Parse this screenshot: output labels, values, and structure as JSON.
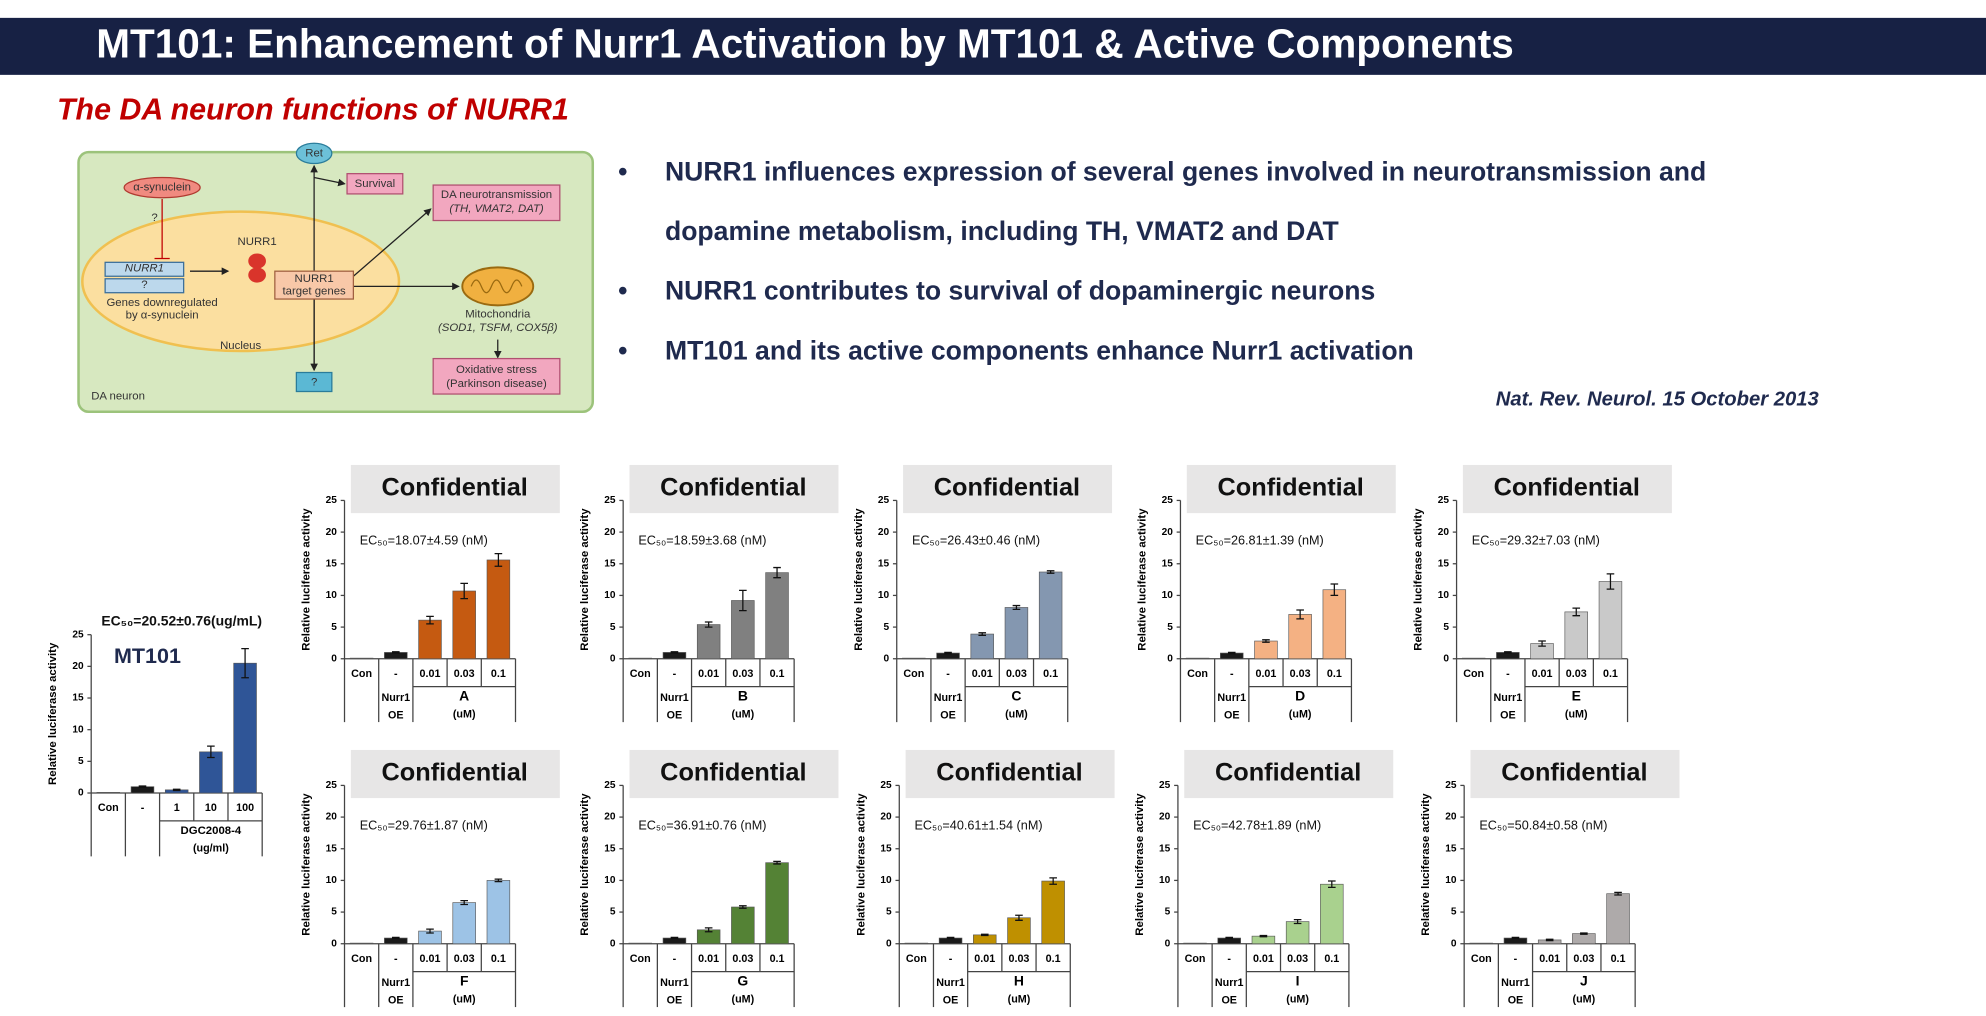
{
  "header": {
    "title": "MT101: Enhancement of Nurr1 Activation by MT101 & Active Components"
  },
  "subtitle": "The DA neuron functions of NURR1",
  "bullets": [
    "NURR1 influences expression of several genes involved in neurotransmission and",
    "dopamine metabolism, including TH, VMAT2 and DAT",
    "NURR1 contributes to survival of dopaminergic neurons",
    "MT101 and its active components enhance Nurr1 activation"
  ],
  "citation": "Nat. Rev. Neurol. 15 October 2013",
  "diagram": {
    "ret": "Ret",
    "survival": "Survival",
    "da_transmission": "DA neurotransmission",
    "da_genes": "(TH, VMAT2, DAT)",
    "synuclein": "α-synuclein",
    "q1": "?",
    "nurr1_gene": "NURR1",
    "q2": "?",
    "nurr1_protein": "NURR1",
    "target_1": "NURR1",
    "target_2": "target genes",
    "genes_1": "Genes downregulated",
    "genes_2": "by α-synuclein",
    "nucleus": "Nucleus",
    "mito": "Mitochondria",
    "mito_genes": "(SOD1, TSFM, COX5β)",
    "ox_1": "Oxidative stress",
    "ox_2": "(Parkinson disease)",
    "q3": "?",
    "neuron": "DA neuron"
  },
  "chart_data": [
    {
      "type": "bar",
      "label": "MT101",
      "annotation": "EC₅₀=20.52±0.76(ug/mL)",
      "y_label": "Relative luciferase activity",
      "categories": [
        "Con",
        "-",
        "1",
        "10",
        "100"
      ],
      "values": [
        0.1,
        1.0,
        0.5,
        6.5,
        20.5
      ],
      "errors": [
        null,
        0.1,
        0.1,
        0.9,
        2.3
      ],
      "color": "#2f5597",
      "control_color": "#1a1a1a",
      "ylim": [
        0,
        25
      ],
      "yticks": [
        0,
        5,
        10,
        15,
        20,
        25
      ],
      "group_label": "DGC2008-4",
      "unit_label": "(ug/ml)"
    },
    {
      "type": "bar",
      "overlay": "Confidential",
      "annotation": "EC₅₀=18.07±4.59 (nM)",
      "y_label": "Relative luciferase activity",
      "categories": [
        "Con",
        "-",
        "0.01",
        "0.03",
        "0.1"
      ],
      "values": [
        0.1,
        1.0,
        6.1,
        10.7,
        15.6
      ],
      "errors": [
        null,
        0.1,
        0.6,
        1.2,
        1.0
      ],
      "color": "#c55a11",
      "control_color": "#1a1a1a",
      "ylim": [
        0,
        25
      ],
      "yticks": [
        0,
        5,
        10,
        15,
        20,
        25
      ],
      "control_label": [
        "Nurr1",
        "OE"
      ],
      "group_label": "A",
      "unit_label": "(uM)"
    },
    {
      "type": "bar",
      "overlay": "Confidential",
      "annotation": "EC₅₀=18.59±3.68 (nM)",
      "y_label": "Relative luciferase activity",
      "categories": [
        "Con",
        "-",
        "0.01",
        "0.03",
        "0.1"
      ],
      "values": [
        0.1,
        1.0,
        5.4,
        9.2,
        13.6
      ],
      "errors": [
        null,
        0.1,
        0.4,
        1.6,
        0.8
      ],
      "color": "#808080",
      "control_color": "#1a1a1a",
      "ylim": [
        0,
        25
      ],
      "yticks": [
        0,
        5,
        10,
        15,
        20,
        25
      ],
      "control_label": [
        "Nurr1",
        "OE"
      ],
      "group_label": "B",
      "unit_label": "(uM)"
    },
    {
      "type": "bar",
      "overlay": "Confidential",
      "annotation": "EC₅₀=26.43±0.46 (nM)",
      "y_label": "Relative luciferase activity",
      "categories": [
        "Con",
        "-",
        "0.01",
        "0.03",
        "0.1"
      ],
      "values": [
        0.1,
        0.9,
        3.9,
        8.1,
        13.7
      ],
      "errors": [
        null,
        0.1,
        0.2,
        0.3,
        0.2
      ],
      "color": "#8497b0",
      "control_color": "#1a1a1a",
      "ylim": [
        0,
        25
      ],
      "yticks": [
        0,
        5,
        10,
        15,
        20,
        25
      ],
      "control_label": [
        "Nurr1",
        "OE"
      ],
      "group_label": "C",
      "unit_label": "(uM)"
    },
    {
      "type": "bar",
      "overlay": "Confidential",
      "annotation": "EC₅₀=26.81±1.39 (nM)",
      "y_label": "Relative luciferase activity",
      "categories": [
        "Con",
        "-",
        "0.01",
        "0.03",
        "0.1"
      ],
      "values": [
        0.1,
        0.9,
        2.8,
        7.0,
        10.9
      ],
      "errors": [
        null,
        0.1,
        0.2,
        0.7,
        0.9
      ],
      "color": "#f4b183",
      "control_color": "#1a1a1a",
      "ylim": [
        0,
        25
      ],
      "yticks": [
        0,
        5,
        10,
        15,
        20,
        25
      ],
      "control_label": [
        "Nurr1",
        "OE"
      ],
      "group_label": "D",
      "unit_label": "(uM)"
    },
    {
      "type": "bar",
      "overlay": "Confidential",
      "annotation": "EC₅₀=29.32±7.03 (nM)",
      "y_label": "Relative luciferase activity",
      "categories": [
        "Con",
        "-",
        "0.01",
        "0.03",
        "0.1"
      ],
      "values": [
        0.1,
        1.0,
        2.4,
        7.4,
        12.2
      ],
      "errors": [
        null,
        0.1,
        0.4,
        0.6,
        1.2
      ],
      "color": "#c9c9c9",
      "control_color": "#1a1a1a",
      "ylim": [
        0,
        25
      ],
      "yticks": [
        0,
        5,
        10,
        15,
        20,
        25
      ],
      "control_label": [
        "Nurr1",
        "OE"
      ],
      "group_label": "E",
      "unit_label": "(uM)"
    },
    {
      "type": "bar",
      "overlay": "Confidential",
      "annotation": "EC₅₀=29.76±1.87 (nM)",
      "y_label": "Relative luciferase activity",
      "categories": [
        "Con",
        "-",
        "0.01",
        "0.03",
        "0.1"
      ],
      "values": [
        0.1,
        0.9,
        2.0,
        6.5,
        10.0
      ],
      "errors": [
        null,
        0.1,
        0.3,
        0.3,
        0.2
      ],
      "color": "#9dc3e6",
      "control_color": "#1a1a1a",
      "ylim": [
        0,
        25
      ],
      "yticks": [
        0,
        5,
        10,
        15,
        20,
        25
      ],
      "control_label": [
        "Nurr1",
        "OE"
      ],
      "group_label": "F",
      "unit_label": "(uM)"
    },
    {
      "type": "bar",
      "overlay": "Confidential",
      "annotation": "EC₅₀=36.91±0.76 (nM)",
      "y_label": "Relative luciferase activity",
      "categories": [
        "Con",
        "-",
        "0.01",
        "0.03",
        "0.1"
      ],
      "values": [
        0.1,
        0.9,
        2.2,
        5.8,
        12.8
      ],
      "errors": [
        null,
        0.1,
        0.3,
        0.2,
        0.2
      ],
      "color": "#548235",
      "control_color": "#1a1a1a",
      "ylim": [
        0,
        25
      ],
      "yticks": [
        0,
        5,
        10,
        15,
        20,
        25
      ],
      "control_label": [
        "Nurr1",
        "OE"
      ],
      "group_label": "G",
      "unit_label": "(uM)"
    },
    {
      "type": "bar",
      "overlay": "Confidential",
      "annotation": "EC₅₀=40.61±1.54 (nM)",
      "y_label": "Relative luciferase activity",
      "categories": [
        "Con",
        "-",
        "0.01",
        "0.03",
        "0.1"
      ],
      "values": [
        0.1,
        0.9,
        1.4,
        4.1,
        9.9
      ],
      "errors": [
        null,
        0.1,
        0.1,
        0.4,
        0.5
      ],
      "color": "#bf9000",
      "control_color": "#1a1a1a",
      "ylim": [
        0,
        25
      ],
      "yticks": [
        0,
        5,
        10,
        15,
        20,
        25
      ],
      "control_label": [
        "Nurr1",
        "OE"
      ],
      "group_label": "H",
      "unit_label": "(uM)"
    },
    {
      "type": "bar",
      "overlay": "Confidential",
      "annotation": "EC₅₀=42.78±1.89 (nM)",
      "y_label": "Relative luciferase activity",
      "categories": [
        "Con",
        "-",
        "0.01",
        "0.03",
        "0.1"
      ],
      "values": [
        0.1,
        0.9,
        1.2,
        3.5,
        9.4
      ],
      "errors": [
        null,
        0.1,
        0.1,
        0.3,
        0.5
      ],
      "color": "#a9d18e",
      "control_color": "#1a1a1a",
      "ylim": [
        0,
        25
      ],
      "yticks": [
        0,
        5,
        10,
        15,
        20,
        25
      ],
      "control_label": [
        "Nurr1",
        "OE"
      ],
      "group_label": "I",
      "unit_label": "(uM)"
    },
    {
      "type": "bar",
      "overlay": "Confidential",
      "annotation": "EC₅₀=50.84±0.58 (nM)",
      "y_label": "Relative luciferase activity",
      "categories": [
        "Con",
        "-",
        "0.01",
        "0.03",
        "0.1"
      ],
      "values": [
        0.1,
        0.9,
        0.6,
        1.6,
        7.9
      ],
      "errors": [
        null,
        0.1,
        0.1,
        0.1,
        0.2
      ],
      "color": "#aeaaaa",
      "control_color": "#1a1a1a",
      "ylim": [
        0,
        25
      ],
      "yticks": [
        0,
        5,
        10,
        15,
        20,
        25
      ],
      "control_label": [
        "Nurr1",
        "OE"
      ],
      "group_label": "J",
      "unit_label": "(uM)"
    }
  ]
}
